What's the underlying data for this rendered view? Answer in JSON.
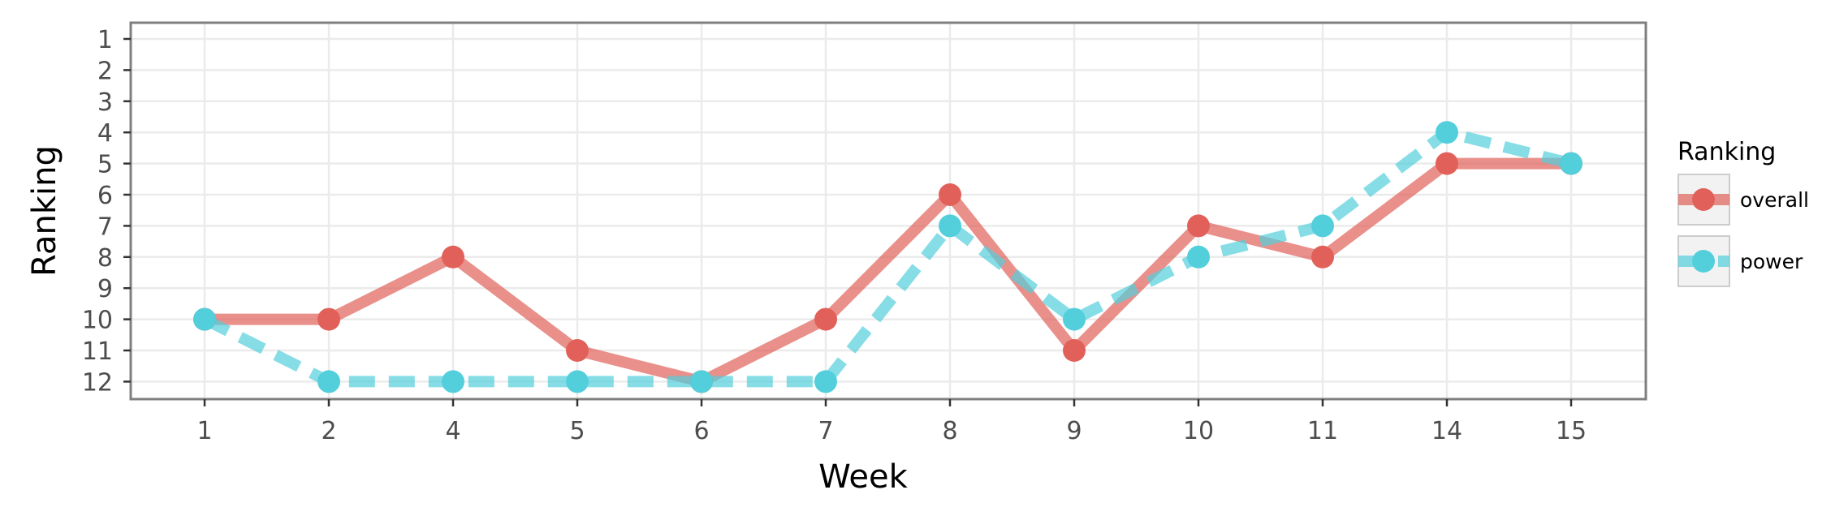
{
  "chart_data": {
    "type": "line",
    "xlabel": "Week",
    "ylabel": "Ranking",
    "categories": [
      "1",
      "2",
      "4",
      "5",
      "6",
      "7",
      "8",
      "9",
      "10",
      "11",
      "14",
      "15"
    ],
    "y_ticks": [
      1,
      2,
      3,
      4,
      5,
      6,
      7,
      8,
      9,
      10,
      11,
      12
    ],
    "ylim": [
      1,
      12
    ],
    "y_reversed": true,
    "grid": true,
    "legend": {
      "title": "Ranking",
      "position": "right"
    },
    "series": [
      {
        "name": "overall",
        "values": [
          10,
          10,
          8,
          11,
          12,
          10,
          6,
          11,
          7,
          8,
          5,
          5
        ],
        "color": "#e1615a",
        "line_style": "solid"
      },
      {
        "name": "power",
        "values": [
          10,
          12,
          12,
          12,
          12,
          12,
          7,
          10,
          8,
          7,
          4,
          5
        ],
        "color": "#52cfdb",
        "line_style": "dashed"
      }
    ]
  }
}
